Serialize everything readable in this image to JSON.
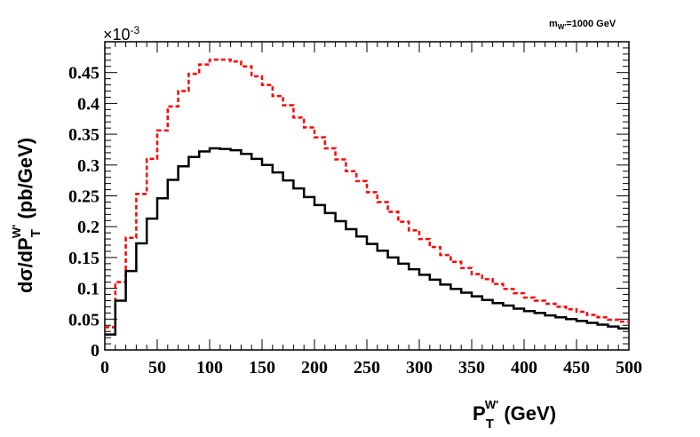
{
  "chart_data": {
    "type": "histogram",
    "annotation": {
      "text": "m",
      "sub": "W'",
      "rest": "=1000 GeV"
    },
    "xlabel": {
      "main": "P",
      "sub": "T",
      "sup": "W'",
      "rest": " (GeV)"
    },
    "ylabel": {
      "pre": "dσ/dP",
      "sub": "T",
      "sup": "W'",
      "rest": " (pb/GeV)"
    },
    "y_exponent": {
      "base": "×10",
      "power": "-3"
    },
    "xlim": [
      0,
      500
    ],
    "ylim": [
      0,
      0.5
    ],
    "x_ticks": [
      "0",
      "50",
      "100",
      "150",
      "200",
      "250",
      "300",
      "350",
      "400",
      "450",
      "500"
    ],
    "y_ticks": [
      {
        "value": 0,
        "label": "0"
      },
      {
        "value": 0.05,
        "label": "0.05"
      },
      {
        "value": 0.1,
        "label": "0.1"
      },
      {
        "value": 0.15,
        "label": "0.15"
      },
      {
        "value": 0.2,
        "label": "0.2"
      },
      {
        "value": 0.25,
        "label": "0.25"
      },
      {
        "value": 0.3,
        "label": "0.3"
      },
      {
        "value": 0.35,
        "label": "0.35"
      },
      {
        "value": 0.4,
        "label": "0.4"
      },
      {
        "value": 0.45,
        "label": "0.45"
      }
    ],
    "bin_width": 10,
    "series": [
      {
        "color": "#000000",
        "style": "solid",
        "values": [
          0.025,
          0.08,
          0.128,
          0.173,
          0.213,
          0.246,
          0.276,
          0.298,
          0.313,
          0.322,
          0.327,
          0.326,
          0.324,
          0.318,
          0.31,
          0.3,
          0.288,
          0.275,
          0.262,
          0.248,
          0.235,
          0.222,
          0.209,
          0.196,
          0.184,
          0.172,
          0.161,
          0.15,
          0.14,
          0.131,
          0.122,
          0.114,
          0.106,
          0.099,
          0.093,
          0.087,
          0.081,
          0.076,
          0.072,
          0.067,
          0.063,
          0.06,
          0.056,
          0.053,
          0.05,
          0.047,
          0.044,
          0.041,
          0.038,
          0.035
        ]
      },
      {
        "color": "#ff0000",
        "style": "dashed",
        "values": [
          0.037,
          0.11,
          0.182,
          0.253,
          0.31,
          0.356,
          0.395,
          0.42,
          0.448,
          0.463,
          0.471,
          0.471,
          0.468,
          0.46,
          0.444,
          0.43,
          0.412,
          0.397,
          0.377,
          0.361,
          0.345,
          0.327,
          0.309,
          0.29,
          0.274,
          0.256,
          0.24,
          0.224,
          0.208,
          0.194,
          0.18,
          0.167,
          0.154,
          0.143,
          0.133,
          0.123,
          0.115,
          0.107,
          0.099,
          0.092,
          0.085,
          0.08,
          0.075,
          0.07,
          0.066,
          0.062,
          0.057,
          0.053,
          0.049,
          0.046
        ]
      }
    ]
  }
}
